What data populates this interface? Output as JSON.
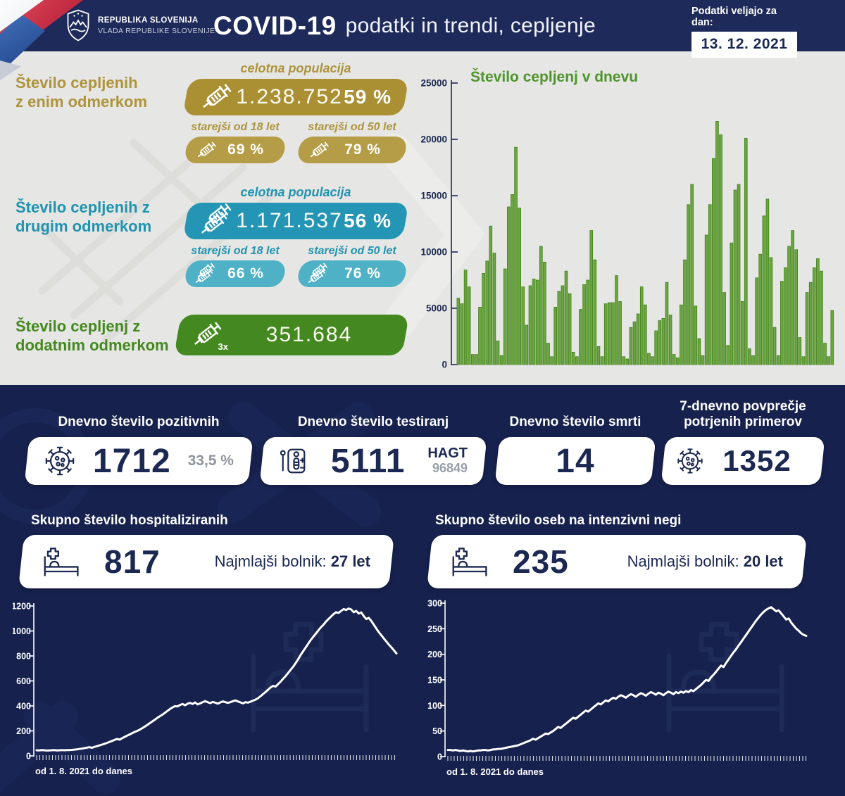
{
  "header": {
    "gov_line1": "REPUBLIKA SLOVENIJA",
    "gov_line2": "VLADA REPUBLIKE SLOVENIJE",
    "title_bold": "COVID-19",
    "title_rest": "podatki in trendi, cepljenje",
    "date_label": "Podatki veljajo za dan:",
    "date_value": "13. 12. 2021"
  },
  "vaccination": {
    "first_dose": {
      "label_line1": "Število cepljenih",
      "label_line2": "z enim odmerkom",
      "population_label": "celotna populacija",
      "total": "1.238.752",
      "percent": "59 %",
      "over18_label": "starejši od 18 let",
      "over18_percent": "69 %",
      "over50_label": "starejši od 50 let",
      "over50_percent": "79 %",
      "color": "#aa9033",
      "color_light": "#b59d48",
      "text_color": "#ad943c"
    },
    "second_dose": {
      "label_line1": "Število cepljenih z",
      "label_line2": "drugim odmerkom",
      "population_label": "celotna populacija",
      "total": "1.171.537",
      "percent": "56 %",
      "over18_label": "starejši od 18 let",
      "over18_percent": "66 %",
      "over50_label": "starejši od 50 let",
      "over50_percent": "76 %",
      "color": "#2495b4",
      "color_light": "#4fb1c6",
      "text_color": "#1f93b0"
    },
    "booster": {
      "label_line1": "Število cepljenj z",
      "label_line2": "dodatnim odmerkom",
      "total": "351.684",
      "multiplier": "3x",
      "color": "#44891f",
      "text_color": "#44891f"
    }
  },
  "daily_stats": {
    "positive": {
      "title": "Dnevno število pozitivnih",
      "value": "1712",
      "percent": "33,5 %"
    },
    "tests": {
      "title": "Dnevno število testiranj",
      "value": "5111",
      "type_label": "HAGT",
      "secondary_value": "96849"
    },
    "deaths": {
      "title": "Dnevno število smrti",
      "value": "14"
    },
    "avg7": {
      "title_line1": "7-dnevno povprečje",
      "title_line2": "potrjenih primerov",
      "value": "1352"
    }
  },
  "hospital": {
    "title": "Skupno število hospitaliziranih",
    "value": "817",
    "youngest_label": "Najmlajši bolnik:",
    "youngest_value": "27 let"
  },
  "icu": {
    "title": "Skupno število oseb na intenzivni negi",
    "value": "235",
    "youngest_label": "Najmlajši bolnik:",
    "youngest_value": "20 let"
  },
  "colors": {
    "header_bg": "#1e2a5a",
    "top_bg": "#e6e6e4",
    "panel_bg": "#16214e",
    "navy_text": "#1b2851",
    "chart_title_green": "#4f942d"
  },
  "chart_data": [
    {
      "id": "vaccinations_per_day",
      "type": "bar",
      "title": "Število cepljenj v dnevu",
      "ylabel": "",
      "xlabel": "",
      "ylim": [
        0,
        25000
      ],
      "yticks": [
        0,
        5000,
        10000,
        15000,
        20000,
        25000
      ],
      "bar_color": "#6aa83f",
      "bar_border": "#447c1e",
      "values": [
        5900,
        5400,
        8400,
        6900,
        900,
        900,
        5100,
        8100,
        9200,
        12300,
        9900,
        2100,
        800,
        8500,
        14000,
        15100,
        19300,
        13900,
        6900,
        3500,
        7000,
        7600,
        7500,
        10500,
        9100,
        1900,
        700,
        5100,
        6500,
        7000,
        8300,
        6300,
        1100,
        700,
        4900,
        7100,
        7500,
        11900,
        9300,
        1600,
        700,
        5400,
        5500,
        5500,
        7900,
        5600,
        700,
        500,
        3300,
        3800,
        4500,
        6900,
        5300,
        1000,
        700,
        3000,
        3900,
        4100,
        7300,
        4400,
        900,
        600,
        5300,
        9300,
        14200,
        16000,
        5200,
        2300,
        800,
        11500,
        14200,
        18300,
        21600,
        20400,
        6400,
        1700,
        10800,
        15500,
        16000,
        5600,
        20100,
        1400,
        800,
        7700,
        9800,
        13200,
        14700,
        9500,
        3300,
        800,
        7400,
        8600,
        10500,
        11900,
        10200,
        2400,
        700,
        6400,
        7300,
        8600,
        9400,
        8300,
        1900,
        700,
        4800
      ]
    },
    {
      "id": "hospitalized",
      "type": "line",
      "title": "Skupno število hospitaliziranih",
      "xlabel": "od 1. 8. 2021 do danes",
      "ylim": [
        0,
        1200
      ],
      "yticks": [
        0,
        200,
        400,
        600,
        800,
        1000,
        1200
      ],
      "line_color": "#ffffff",
      "values": [
        45,
        44,
        46,
        45,
        43,
        44,
        45,
        46,
        44,
        45,
        46,
        45,
        47,
        46,
        48,
        50,
        52,
        55,
        58,
        62,
        66,
        70,
        65,
        72,
        78,
        84,
        90,
        97,
        104,
        112,
        120,
        128,
        136,
        130,
        142,
        152,
        162,
        172,
        182,
        192,
        200,
        210,
        222,
        235,
        248,
        262,
        276,
        290,
        305,
        318,
        330,
        345,
        360,
        375,
        388,
        398,
        396,
        408,
        415,
        405,
        418,
        424,
        416,
        428,
        412,
        420,
        430,
        438,
        430,
        422,
        432,
        426,
        418,
        428,
        436,
        430,
        424,
        430,
        438,
        444,
        436,
        428,
        420,
        430,
        426,
        434,
        442,
        450,
        462,
        478,
        495,
        512,
        530,
        548,
        560,
        555,
        575,
        595,
        618,
        640,
        665,
        690,
        715,
        745,
        775,
        810,
        840,
        870,
        900,
        930,
        955,
        980,
        1005,
        1030,
        1050,
        1075,
        1095,
        1115,
        1135,
        1150,
        1145,
        1160,
        1175,
        1168,
        1180,
        1172,
        1150,
        1160,
        1140,
        1148,
        1120,
        1095,
        1105,
        1080,
        1050,
        1020,
        990,
        965,
        940,
        915,
        890,
        868,
        845,
        820
      ]
    },
    {
      "id": "icu",
      "type": "line",
      "title": "Skupno število oseb na intenzivni negi",
      "xlabel": "od 1. 8. 2021 do danes",
      "ylim": [
        0,
        300
      ],
      "yticks": [
        0,
        50,
        100,
        150,
        200,
        250,
        300
      ],
      "line_color": "#ffffff",
      "values": [
        13,
        13,
        12,
        13,
        12,
        11,
        12,
        11,
        10,
        11,
        10,
        11,
        12,
        12,
        13,
        13,
        12,
        13,
        14,
        14,
        15,
        15,
        16,
        17,
        18,
        19,
        20,
        21,
        22,
        24,
        26,
        28,
        30,
        32,
        35,
        33,
        36,
        39,
        42,
        45,
        44,
        47,
        50,
        54,
        58,
        56,
        60,
        64,
        68,
        72,
        76,
        74,
        78,
        82,
        86,
        90,
        88,
        92,
        96,
        100,
        104,
        102,
        106,
        110,
        108,
        112,
        115,
        113,
        117,
        120,
        118,
        115,
        119,
        122,
        120,
        117,
        121,
        124,
        122,
        119,
        123,
        126,
        124,
        121,
        125,
        123,
        120,
        124,
        127,
        125,
        122,
        126,
        124,
        127,
        125,
        128,
        126,
        130,
        128,
        132,
        136,
        140,
        145,
        150,
        148,
        155,
        160,
        166,
        172,
        178,
        175,
        183,
        190,
        197,
        204,
        210,
        217,
        224,
        231,
        238,
        245,
        252,
        259,
        266,
        272,
        278,
        283,
        287,
        290,
        292,
        288,
        284,
        286,
        280,
        274,
        268,
        270,
        262,
        256,
        250,
        246,
        241,
        238,
        236
      ]
    }
  ]
}
